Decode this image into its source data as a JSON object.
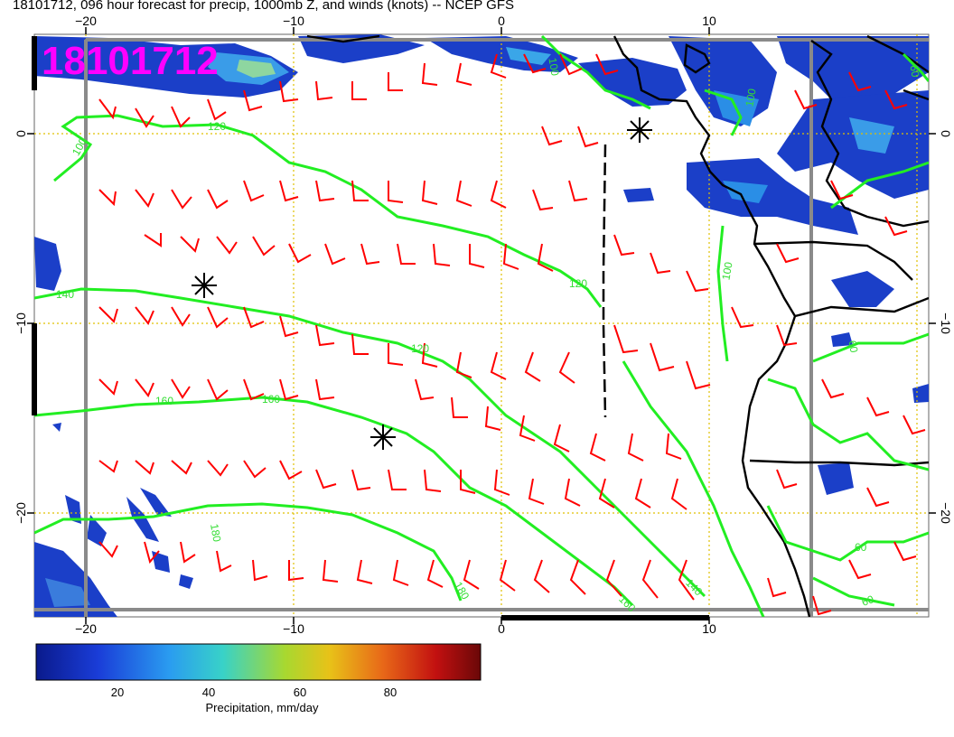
{
  "title": "18101712, 096 hour forecast for precip, 1000mb Z, and winds (knots) -- NCEP GFS",
  "timestamp_stamp": "18101712",
  "lon_ticks_top": [
    "−20",
    "−10",
    "0",
    "10"
  ],
  "lon_ticks_bottom": [
    "−20",
    "−10",
    "0",
    "10"
  ],
  "lat_ticks_left": [
    "0",
    "−10",
    "−20"
  ],
  "lat_ticks_right": [
    "0",
    "−10",
    "−20"
  ],
  "contour_labels": [
    "120",
    "100",
    "140",
    "120",
    "100",
    "160",
    "160",
    "180",
    "180",
    "160",
    "140",
    "120",
    "100",
    "60",
    "60",
    "60",
    "60",
    "100"
  ],
  "colorbar": {
    "label": "Precipitation, mm/day",
    "ticks": [
      "20",
      "40",
      "60",
      "80"
    ],
    "colors": [
      "#0a1a8c",
      "#1a3dd8",
      "#2a9cf0",
      "#38d2c8",
      "#a8d830",
      "#e8c218",
      "#e86818",
      "#c21010",
      "#6a0808"
    ]
  },
  "colors": {
    "contour": "#22ee22",
    "wind_barb": "#ff0000",
    "grid": "#e0c000",
    "coastline": "#000000",
    "stamp": "#ff00ff"
  }
}
